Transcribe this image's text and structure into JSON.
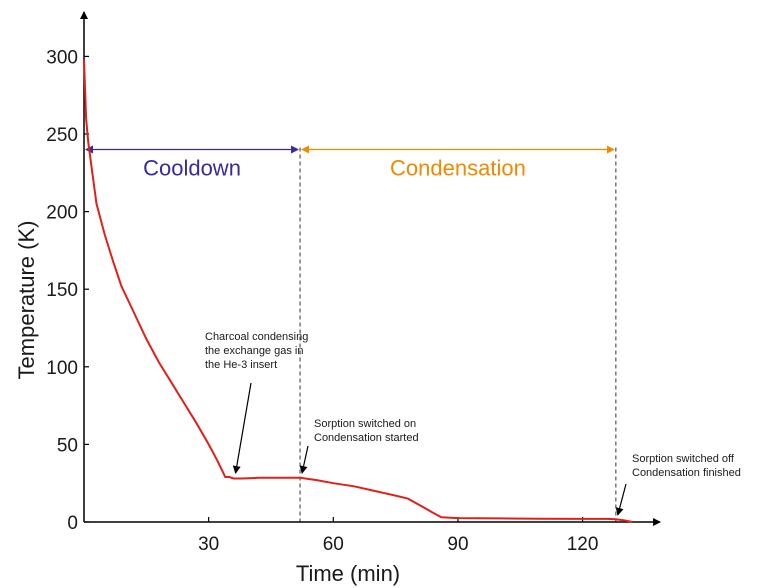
{
  "chart_data": {
    "type": "line",
    "xlabel": "Time (min)",
    "ylabel": "Temperature (K)",
    "xlim": [
      0,
      135
    ],
    "ylim": [
      0,
      310
    ],
    "x_ticks": [
      30,
      60,
      90,
      120
    ],
    "y_ticks": [
      0,
      50,
      100,
      150,
      200,
      250,
      300
    ],
    "grid": false,
    "colors": {
      "curve": "#e0201b",
      "cooldown": "#3a2a9a",
      "condensation": "#f08a00",
      "axis": "#000000",
      "guide": "#555555"
    },
    "series": [
      {
        "x": [
          0,
          0.5,
          1,
          2,
          3,
          5,
          7,
          9,
          12,
          15,
          18,
          21,
          24,
          27,
          30,
          32,
          34,
          35,
          36,
          38,
          42,
          48,
          52,
          56,
          60,
          65,
          70,
          75,
          78,
          80,
          82,
          84,
          86,
          90,
          100,
          110,
          120,
          126,
          128,
          130,
          132
        ],
        "y": [
          298,
          260,
          245,
          225,
          205,
          185,
          168,
          152,
          135,
          118,
          103,
          90,
          77,
          64,
          50,
          40,
          29,
          29,
          28,
          28,
          28.5,
          28.5,
          28.5,
          27,
          25,
          23,
          20,
          17,
          15,
          12,
          9,
          6,
          3,
          2.5,
          2.3,
          2.1,
          2.0,
          2.0,
          1.8,
          1.0,
          0
        ]
      }
    ],
    "phases": [
      {
        "label": "Cooldown",
        "x_start": 0,
        "x_end": 52,
        "y": 240
      },
      {
        "label": "Condensation",
        "x_start": 52,
        "x_end": 128,
        "y": 240
      }
    ],
    "guides": [
      52,
      128
    ],
    "annotations": [
      {
        "lines": [
          "Charcoal condensing",
          "the exchange gas in",
          "the He-3 insert"
        ],
        "x": 36,
        "y": 29
      },
      {
        "lines": [
          "Sorption switched on",
          "Condensation started"
        ],
        "x": 52,
        "y": 29
      },
      {
        "lines": [
          "Sorption switched off",
          "Condensation finished"
        ],
        "x": 128,
        "y": 2
      }
    ]
  }
}
